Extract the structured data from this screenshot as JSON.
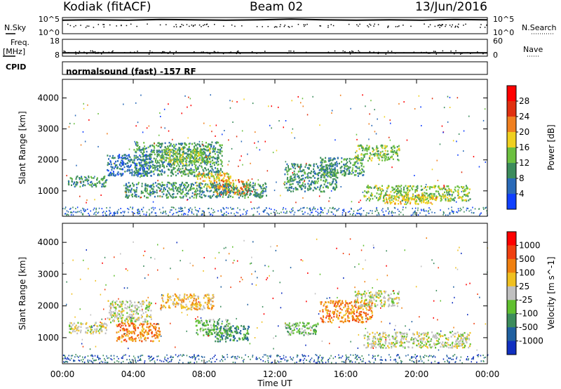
{
  "header": {
    "station": "Kodiak (fitACF)",
    "beam": "Beam 02",
    "date": "13/Jun/2016"
  },
  "left_panel_labels": {
    "nsky": "N.Sky",
    "freq": "Freq.",
    "freq_unit": "[MHz]",
    "cpid": "CPID"
  },
  "right_panel_labels": {
    "nsearch": "N.Search",
    "nave": "Nave"
  },
  "cpid_text": "normalsound (fast) -157 RF",
  "chart_data": [
    {
      "type": "line",
      "name": "noise-panel",
      "left_ticks": [
        "10^5",
        "10^0"
      ],
      "right_ticks": [
        "10^5",
        "10^0"
      ],
      "series": [
        {
          "values": [
            4.2,
            4.3,
            4.2,
            4.4,
            4.3,
            4.2,
            4.3,
            4.5,
            4.3,
            4.2,
            4.3,
            4.2,
            4.4,
            4.3
          ]
        }
      ]
    },
    {
      "type": "line",
      "name": "freq-nave-panel",
      "left_ticks": [
        "18",
        "8"
      ],
      "right_ticks": [
        "60",
        "0"
      ],
      "series": [
        {
          "values": [
            10,
            10,
            10,
            10,
            10,
            10,
            10,
            10,
            10,
            10,
            10,
            10,
            10,
            10
          ]
        }
      ]
    },
    {
      "type": "heatmap",
      "name": "power",
      "ylabel": "Slant Range [km]",
      "ylim": [
        180,
        4600
      ],
      "y_ticks": [
        1000,
        2000,
        3000,
        4000
      ],
      "colorbar_label": "Power [dB]",
      "colorbar_ticks": [
        "4",
        "8",
        "12",
        "16",
        "20",
        "24",
        "28"
      ],
      "colors": [
        "#1040ff",
        "#2a6ab8",
        "#3c8c5c",
        "#6cc040",
        "#f0d020",
        "#f08020",
        "#e03010",
        "#ff0000"
      ],
      "echo_regions": [
        {
          "t0": 0.3,
          "t1": 2.5,
          "r0": 1150,
          "r1": 1500,
          "level": 2
        },
        {
          "t0": 2.5,
          "t1": 5.0,
          "r0": 1500,
          "r1": 2200,
          "level": 1
        },
        {
          "t0": 4.0,
          "t1": 9.0,
          "r0": 1500,
          "r1": 2600,
          "level": 2
        },
        {
          "t0": 5.5,
          "t1": 8.5,
          "r0": 1900,
          "r1": 2400,
          "level": 3
        },
        {
          "t0": 7.5,
          "t1": 9.5,
          "r0": 1100,
          "r1": 1600,
          "level": 4
        },
        {
          "t0": 8.5,
          "t1": 10.5,
          "r0": 900,
          "r1": 1400,
          "level": 5
        },
        {
          "t0": 3.5,
          "t1": 11.5,
          "r0": 800,
          "r1": 1300,
          "level": 2
        },
        {
          "t0": 12.5,
          "t1": 15.5,
          "r0": 1000,
          "r1": 1900,
          "level": 2
        },
        {
          "t0": 14.5,
          "t1": 17.0,
          "r0": 1500,
          "r1": 2100,
          "level": 2
        },
        {
          "t0": 16.5,
          "t1": 19.0,
          "r0": 2000,
          "r1": 2500,
          "level": 3
        },
        {
          "t0": 17.0,
          "t1": 23.0,
          "r0": 700,
          "r1": 1200,
          "level": 3
        },
        {
          "t0": 18.0,
          "t1": 21.0,
          "r0": 600,
          "r1": 900,
          "level": 4
        }
      ]
    },
    {
      "type": "heatmap",
      "name": "velocity",
      "ylabel": "Slant Range [km]",
      "ylim": [
        180,
        4600
      ],
      "y_ticks": [
        1000,
        2000,
        3000,
        4000
      ],
      "colorbar_label": "Velocity [m s^-1]",
      "colorbar_ticks": [
        "1000",
        "500",
        "100",
        "25",
        "-25",
        "-100",
        "-500",
        "-1000"
      ],
      "colors": [
        "#1030c0",
        "#2060a0",
        "#3c8c5c",
        "#60c030",
        "#c0c0c0",
        "#f0c020",
        "#f08010",
        "#f04010",
        "#ff0000"
      ],
      "echo_regions": [
        {
          "t0": 0.3,
          "t1": 2.5,
          "r0": 1150,
          "r1": 1500,
          "level": 4
        },
        {
          "t0": 2.5,
          "t1": 5.0,
          "r0": 1500,
          "r1": 2200,
          "level": 4
        },
        {
          "t0": 3.0,
          "t1": 5.5,
          "r0": 900,
          "r1": 1500,
          "level": 6
        },
        {
          "t0": 5.5,
          "t1": 8.5,
          "r0": 1900,
          "r1": 2400,
          "level": 5
        },
        {
          "t0": 7.5,
          "t1": 9.5,
          "r0": 1100,
          "r1": 1600,
          "level": 3
        },
        {
          "t0": 8.5,
          "t1": 10.5,
          "r0": 900,
          "r1": 1400,
          "level": 2
        },
        {
          "t0": 12.5,
          "t1": 14.5,
          "r0": 1100,
          "r1": 1500,
          "level": 3
        },
        {
          "t0": 14.5,
          "t1": 17.5,
          "r0": 1500,
          "r1": 2200,
          "level": 6
        },
        {
          "t0": 16.5,
          "t1": 19.0,
          "r0": 2000,
          "r1": 2500,
          "level": 4
        },
        {
          "t0": 17.0,
          "t1": 23.0,
          "r0": 700,
          "r1": 1200,
          "level": 4
        }
      ]
    }
  ],
  "x_axis": {
    "label": "Time UT",
    "xlim": [
      0,
      24
    ],
    "tick_labels": [
      "00:00",
      "04:00",
      "08:00",
      "12:00",
      "16:00",
      "20:00",
      "00:00"
    ]
  }
}
